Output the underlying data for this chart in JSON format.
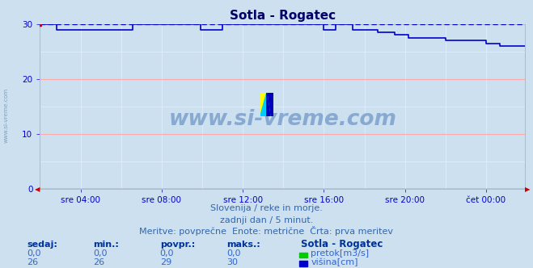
{
  "title": "Sotla - Rogatec",
  "bg_color": "#cce0f0",
  "plot_bg_color": "#cce0f0",
  "grid_color_major": "#ffaaaa",
  "grid_color_minor": "#ddeeff",
  "tick_color": "#0000cc",
  "title_color": "#000066",
  "watermark_text": "www.si-vreme.com",
  "watermark_color": "#88aad0",
  "xmin": 0,
  "xmax": 287,
  "ymin": 0,
  "ymax": 30,
  "yticks_major": [
    0,
    10,
    20,
    30
  ],
  "yticks_minor": [
    0,
    5,
    10,
    15,
    20,
    25,
    30
  ],
  "xtick_show_pos": [
    24,
    72,
    120,
    168,
    216,
    264
  ],
  "xtick_labels": [
    "sre 04:00",
    "sre 08:00",
    "sre 12:00",
    "sre 16:00",
    "sre 20:00",
    "čet 00:00"
  ],
  "xtick_minor_pos": [
    0,
    24,
    48,
    72,
    96,
    120,
    144,
    168,
    192,
    216,
    240,
    264,
    287
  ],
  "line_color_visina": "#0000cc",
  "line_color_pretok": "#00bb00",
  "dashed_line_color": "#0000cc",
  "subtitle1": "Slovenija / reke in morje.",
  "subtitle2": "zadnji dan / 5 minut.",
  "subtitle3": "Meritve: povprečne  Enote: metrične  Črta: prva meritev",
  "subtitle_color": "#3366aa",
  "table_headers": [
    "sedaj:",
    "min.:",
    "povpr.:",
    "maks.:"
  ],
  "table_vals_pretok": [
    "0,0",
    "0,0",
    "0,0",
    "0,0"
  ],
  "table_vals_visina": [
    "26",
    "26",
    "29",
    "30"
  ],
  "legend_title": "Sotla - Rogatec",
  "legend_pretok": "pretok[m3/s]",
  "legend_visina": "višina[cm]",
  "legend_color_pretok": "#00cc00",
  "legend_color_visina": "#0000cc",
  "font_color_blue": "#3366cc",
  "font_color_dark": "#003399"
}
